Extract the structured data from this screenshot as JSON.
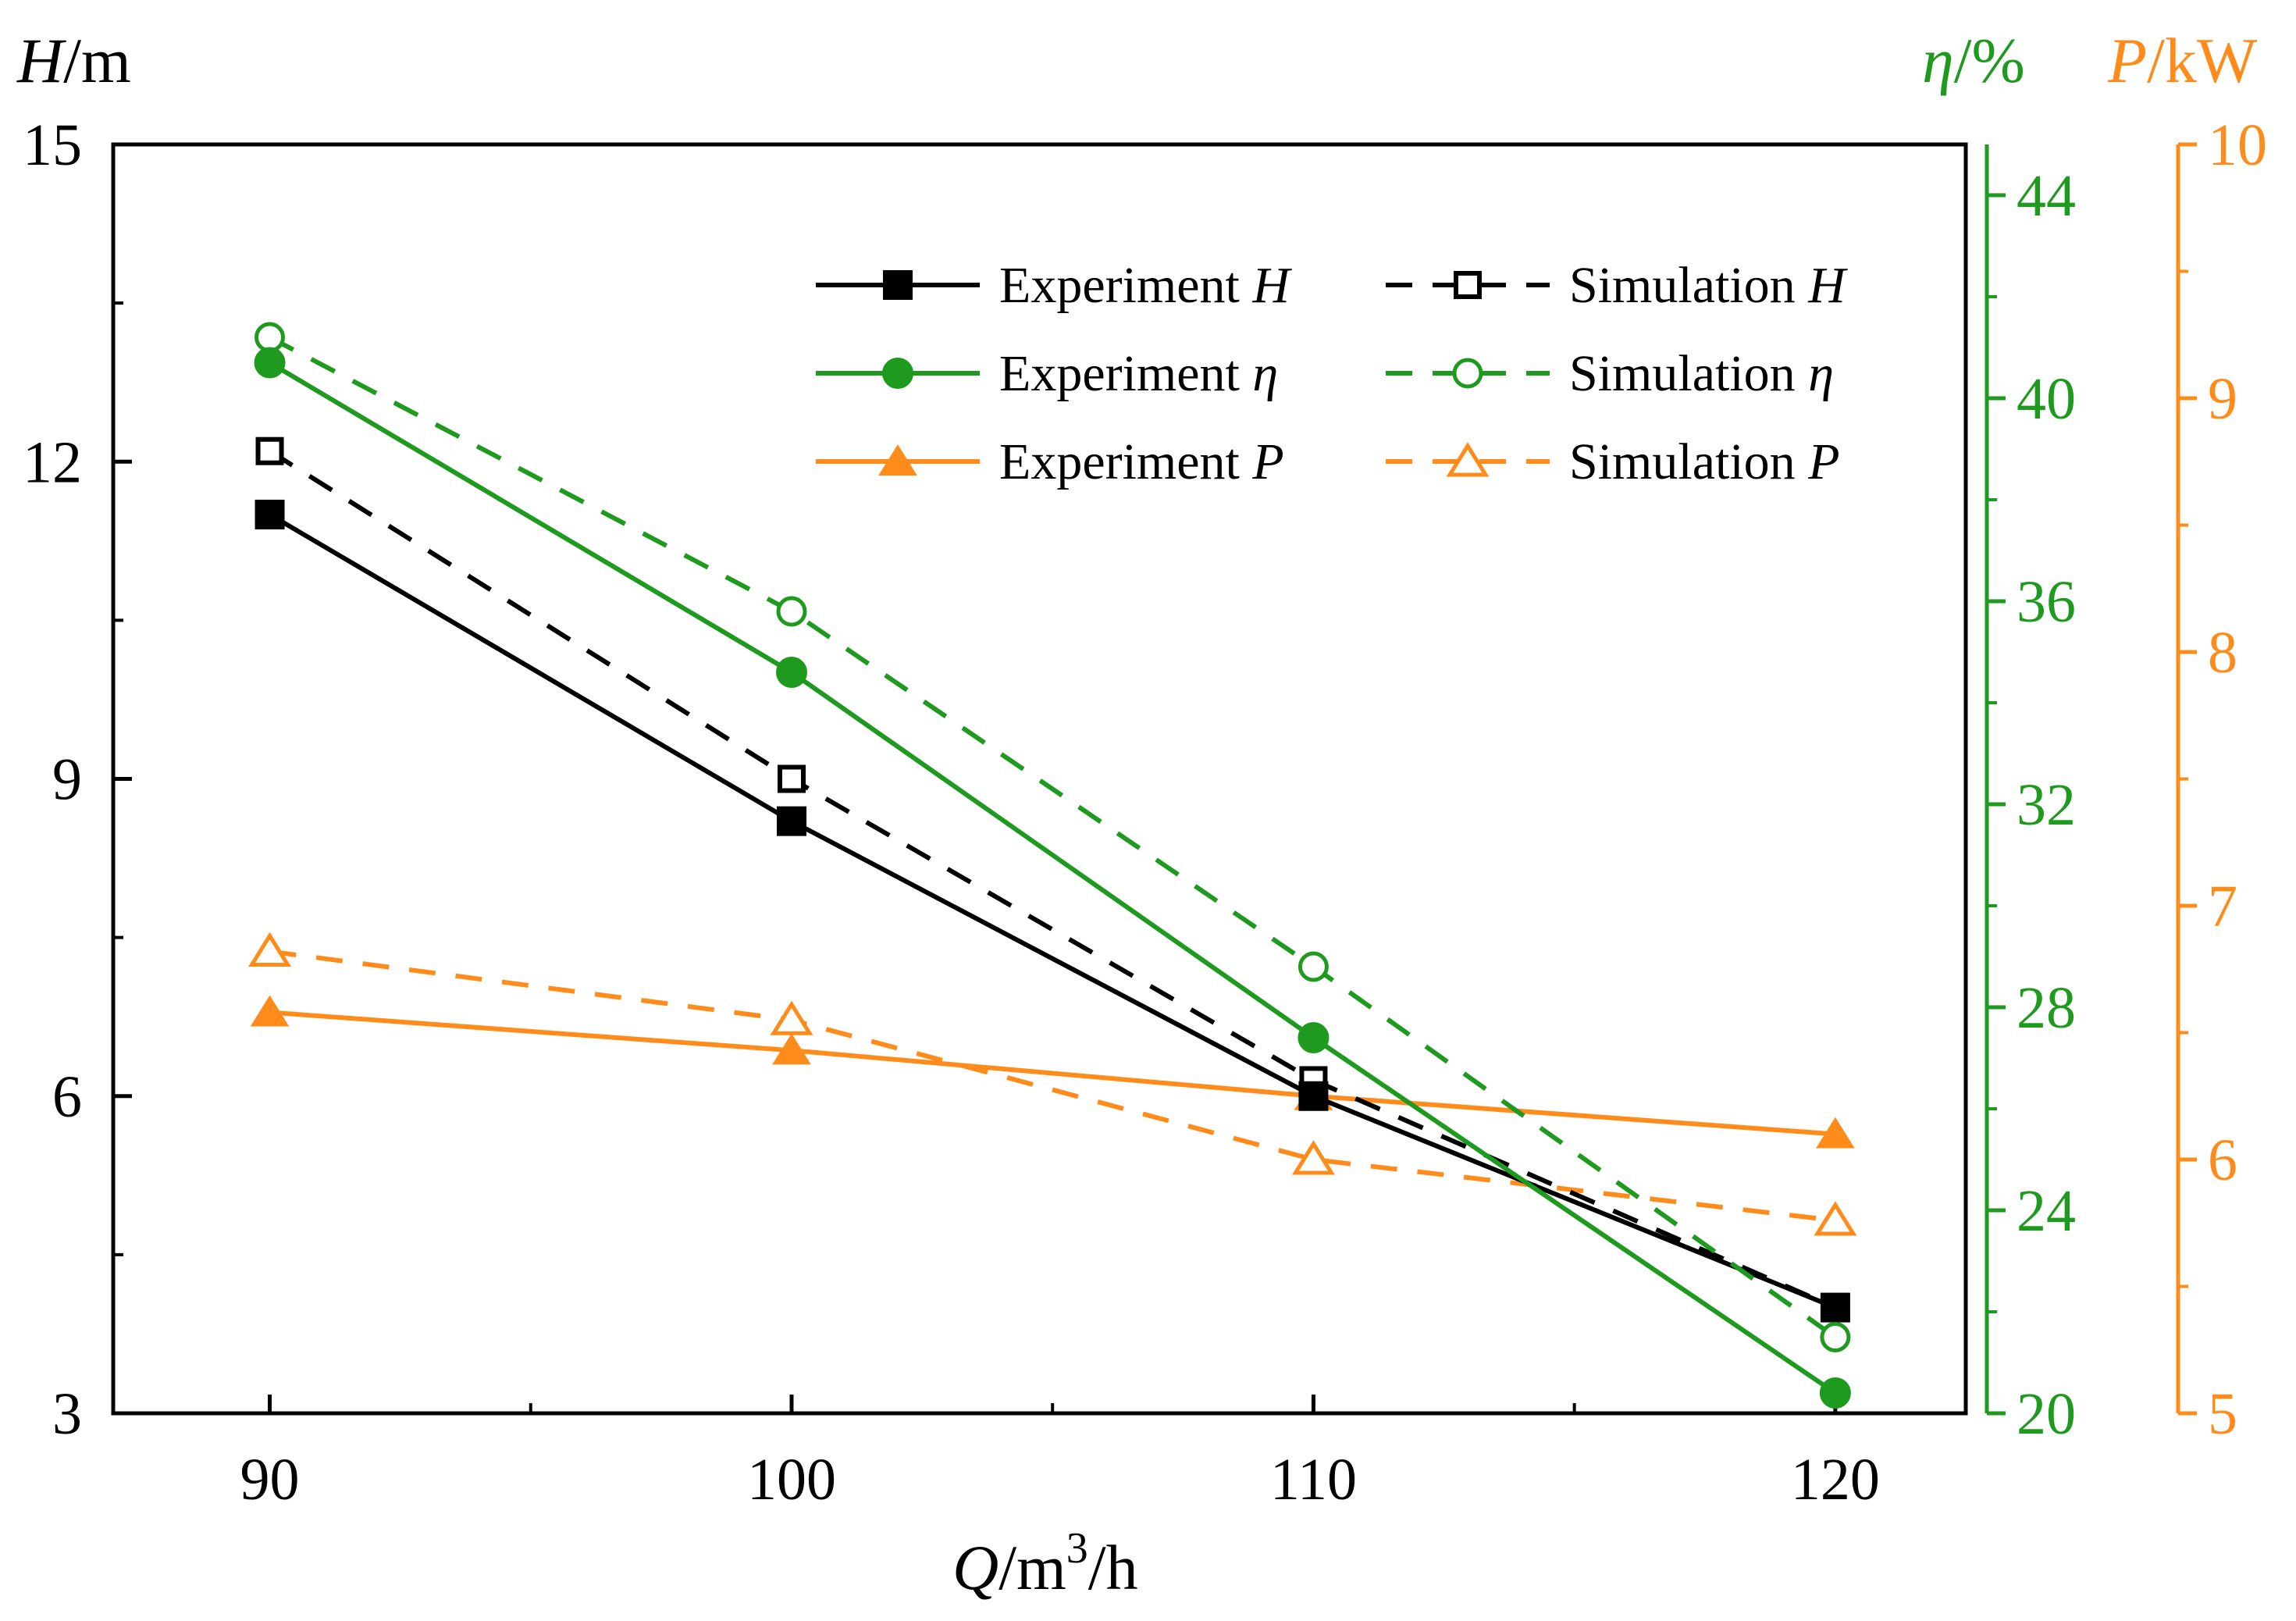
{
  "chart_data": {
    "type": "line",
    "title": "",
    "x": [
      90,
      100,
      110,
      120
    ],
    "xlabel": {
      "italic": "Q",
      "unit": "/m",
      "sup": "3",
      "tail": "/h"
    },
    "xticks": [
      "90",
      "100",
      "110",
      "120"
    ],
    "xlim": [
      87,
      122.5
    ],
    "axes": {
      "left": {
        "label_italic": "H",
        "label_unit": "/m",
        "ylim": [
          3,
          15
        ],
        "ticks": [
          "3",
          "6",
          "9",
          "12",
          "15"
        ],
        "color": "#000000"
      },
      "right1": {
        "label_italic": "η",
        "label_unit": "/%",
        "ylim": [
          20,
          45
        ],
        "ticks": [
          "20",
          "24",
          "28",
          "32",
          "36",
          "40",
          "44"
        ],
        "color": "#1e9a1e"
      },
      "right2": {
        "label_italic": "P",
        "label_unit": "/kW",
        "ylim": [
          5,
          10
        ],
        "ticks": [
          "5",
          "6",
          "7",
          "8",
          "9",
          "10"
        ],
        "color": "#ff8c1a"
      }
    },
    "series": [
      {
        "name": "Experiment H",
        "legend_text": "Experiment ",
        "legend_var": "H",
        "axis": "left",
        "color": "#000000",
        "dash": false,
        "marker": "square-filled",
        "values": [
          11.5,
          8.6,
          6.0,
          4.0
        ]
      },
      {
        "name": "Simulation H",
        "legend_text": "Simulation ",
        "legend_var": "H",
        "axis": "left",
        "color": "#000000",
        "dash": true,
        "marker": "square-open",
        "values": [
          12.1,
          9.0,
          6.15,
          4.0
        ]
      },
      {
        "name": "Experiment η",
        "legend_text": "Experiment ",
        "legend_var": "η",
        "axis": "right1",
        "color": "#1e9a1e",
        "dash": false,
        "marker": "circle-filled",
        "values": [
          40.7,
          34.6,
          27.4,
          20.4
        ]
      },
      {
        "name": "Simulation η",
        "legend_text": "Simulation ",
        "legend_var": "η",
        "axis": "right1",
        "color": "#1e9a1e",
        "dash": true,
        "marker": "circle-open",
        "values": [
          41.2,
          35.8,
          28.8,
          21.5
        ]
      },
      {
        "name": "Experiment P",
        "legend_text": "Experiment ",
        "legend_var": "P",
        "axis": "right2",
        "color": "#ff8c1a",
        "dash": false,
        "marker": "triangle-filled",
        "values": [
          6.58,
          6.43,
          6.25,
          6.1
        ]
      },
      {
        "name": "Simulation P",
        "legend_text": "Simulation ",
        "legend_var": "P",
        "axis": "right2",
        "color": "#ff8c1a",
        "dash": true,
        "marker": "triangle-open",
        "values": [
          6.82,
          6.55,
          6.0,
          5.76
        ]
      }
    ],
    "legend_position": "top-right"
  }
}
